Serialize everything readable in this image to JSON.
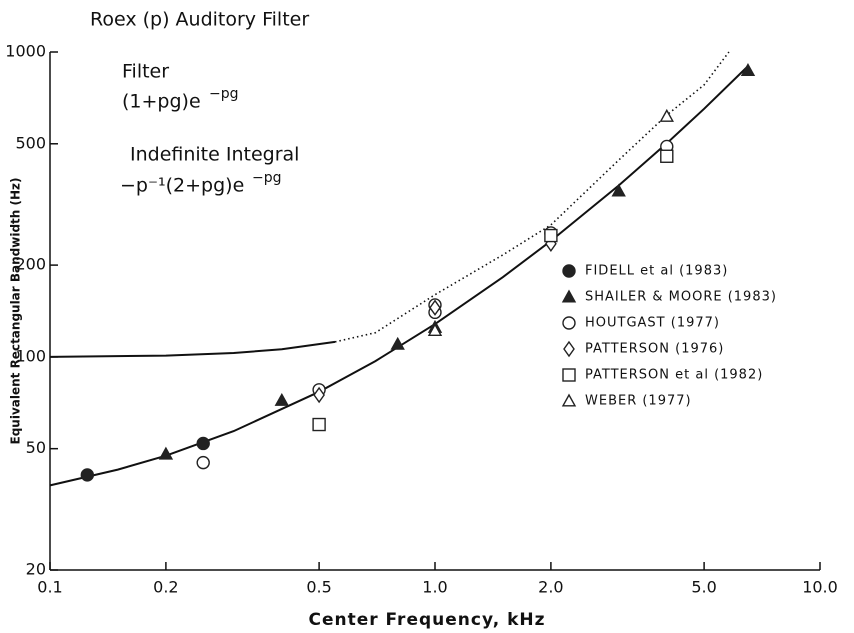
{
  "chart_data": {
    "type": "scatter",
    "title": "Roex (p) Auditory Filter",
    "annotations": {
      "filter": "Filter",
      "filter_formula": "(1+pg)e",
      "filter_exp": "−pg",
      "integral": "Indefinite Integral",
      "integral_formula": "−p⁻¹(2+pg)e",
      "integral_exp": "−pg"
    },
    "xlabel": "Center Frequency, kHz",
    "ylabel": "Equivalent Rectangular Bandwidth  (Hz)",
    "xscale": "log",
    "yscale": "log",
    "xlim": [
      0.1,
      10
    ],
    "ylim": [
      20,
      1000
    ],
    "xticks": [
      0.1,
      0.2,
      0.5,
      {
        "value": 1,
        "label": "1.0"
      },
      {
        "value": 2,
        "label": "2.0"
      },
      {
        "value": 5,
        "label": "5.0"
      },
      {
        "value": 10,
        "label": "10.0"
      }
    ],
    "yticks": [
      20,
      50,
      100,
      200,
      500,
      1000
    ],
    "legend": "right",
    "series": [
      {
        "name": "FIDELL et al (1983)",
        "marker": "filled-circle",
        "color": "#222",
        "x": [
          0.125,
          0.25
        ],
        "values": [
          41,
          52
        ]
      },
      {
        "name": "SHAILER & MOORE (1983)",
        "marker": "filled-triangle",
        "color": "#222",
        "x": [
          0.2,
          0.4,
          0.8,
          1.0,
          3.0,
          6.5
        ],
        "values": [
          48,
          72,
          110,
          125,
          350,
          870
        ]
      },
      {
        "name": "HOUTGAST (1977)",
        "marker": "circle",
        "color": "#222",
        "x": [
          0.25,
          0.5,
          1.0,
          1.0,
          2.0,
          4.0
        ],
        "values": [
          45,
          78,
          148,
          140,
          255,
          490
        ]
      },
      {
        "name": "PATTERSON (1976)",
        "marker": "diamond",
        "color": "#222",
        "x": [
          0.5,
          1.0,
          2.0
        ],
        "values": [
          75,
          145,
          235
        ]
      },
      {
        "name": "PATTERSON et al (1982)",
        "marker": "square",
        "color": "#222",
        "x": [
          0.5,
          2.0,
          4.0
        ],
        "values": [
          60,
          250,
          455
        ]
      },
      {
        "name": "WEBER (1977)",
        "marker": "triangle",
        "color": "#222",
        "x": [
          1.0,
          4.0
        ],
        "values": [
          122,
          615
        ]
      }
    ],
    "curves": [
      {
        "style": "solid",
        "color": "#111",
        "x": [
          0.1,
          0.15,
          0.2,
          0.3,
          0.5,
          0.7,
          1,
          1.5,
          2,
          3,
          4,
          5,
          6.5
        ],
        "values": [
          37.9,
          42.7,
          47.4,
          57.1,
          76.8,
          96.9,
          128.1,
          182.6,
          240.2,
          364.8,
          501.8,
          651.2,
          898.8
        ]
      },
      {
        "style": "solid",
        "color": "#111",
        "x": [
          0.1,
          0.2,
          0.3,
          0.4,
          0.55
        ],
        "values": [
          100,
          101,
          103,
          106,
          112
        ]
      },
      {
        "style": "dotted",
        "color": "#111",
        "x": [
          0.55,
          0.7,
          1,
          1.5,
          2,
          3,
          4,
          5,
          5.8
        ],
        "values": [
          112,
          120,
          160,
          216,
          271,
          442,
          621,
          780,
          1000
        ]
      }
    ]
  }
}
